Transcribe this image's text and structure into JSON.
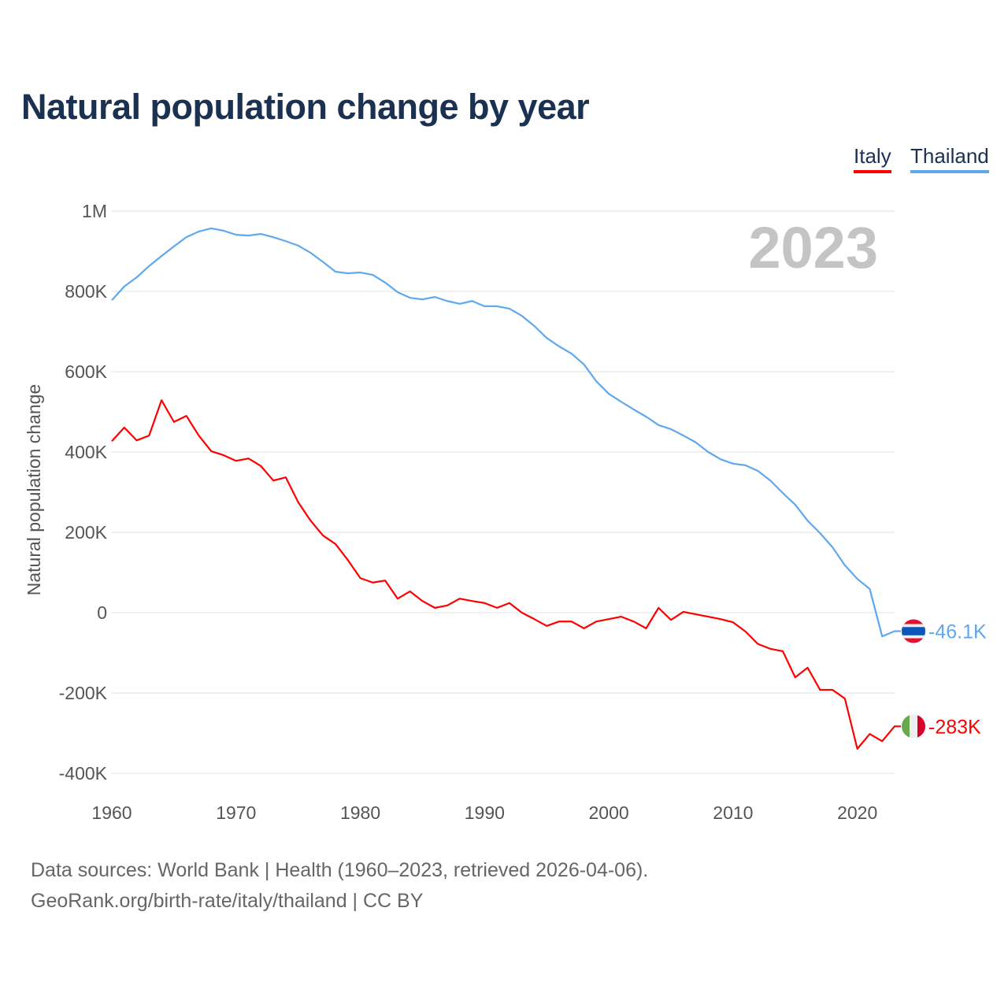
{
  "title": "Natural population change by year",
  "legend": [
    {
      "label": "Italy",
      "color": "#ff0000"
    },
    {
      "label": "Thailand",
      "color": "#5fa8ee"
    }
  ],
  "footer": {
    "line1": "Data sources: World Bank | Health (1960–2023, retrieved 2026-04-06).",
    "line2": "GeoRank.org/birth-rate/italy/thailand | CC BY"
  },
  "chart_data": {
    "type": "line",
    "title": "Natural population change by year",
    "xlabel": "",
    "ylabel": "Natural population change",
    "year_label": "2023",
    "xlim": [
      1960,
      2023
    ],
    "ylim": [
      -400000,
      1000000
    ],
    "x_ticks": [
      1960,
      1970,
      1980,
      1990,
      2000,
      2010,
      2020
    ],
    "y_ticks": [
      {
        "v": 1000000,
        "label": "1M"
      },
      {
        "v": 800000,
        "label": "800K"
      },
      {
        "v": 600000,
        "label": "600K"
      },
      {
        "v": 400000,
        "label": "400K"
      },
      {
        "v": 200000,
        "label": "200K"
      },
      {
        "v": 0,
        "label": "0"
      },
      {
        "v": -200000,
        "label": "-200K"
      },
      {
        "v": -400000,
        "label": "-400K"
      }
    ],
    "grid": true,
    "legend_position": "top-right",
    "x": [
      1960,
      1961,
      1962,
      1963,
      1964,
      1965,
      1966,
      1967,
      1968,
      1969,
      1970,
      1971,
      1972,
      1973,
      1974,
      1975,
      1976,
      1977,
      1978,
      1979,
      1980,
      1981,
      1982,
      1983,
      1984,
      1985,
      1986,
      1987,
      1988,
      1989,
      1990,
      1991,
      1992,
      1993,
      1994,
      1995,
      1996,
      1997,
      1998,
      1999,
      2000,
      2001,
      2002,
      2003,
      2004,
      2005,
      2006,
      2007,
      2008,
      2009,
      2010,
      2011,
      2012,
      2013,
      2014,
      2015,
      2016,
      2017,
      2018,
      2019,
      2020,
      2021,
      2022,
      2023
    ],
    "series": [
      {
        "name": "Thailand",
        "color": "#5fa8ee",
        "end_label": "-46.1K",
        "flag": "thailand-flag",
        "values": [
          778000,
          812000,
          835000,
          863000,
          888000,
          912000,
          935000,
          949000,
          957000,
          951000,
          941000,
          939000,
          943000,
          935000,
          925000,
          914000,
          896000,
          873000,
          849000,
          845000,
          847000,
          841000,
          822000,
          798000,
          784000,
          780000,
          786000,
          776000,
          769000,
          776000,
          763000,
          763000,
          757000,
          739000,
          714000,
          684000,
          663000,
          645000,
          618000,
          576000,
          545000,
          525000,
          506000,
          488000,
          467000,
          457000,
          441000,
          424000,
          400000,
          382000,
          371000,
          367000,
          353000,
          329000,
          298000,
          269000,
          229000,
          198000,
          163000,
          118000,
          84000,
          59000,
          -59000,
          -46100
        ]
      },
      {
        "name": "Italy",
        "color": "#ff0000",
        "end_label": "-283K",
        "flag": "italy-flag",
        "values": [
          427000,
          461000,
          429000,
          441000,
          529000,
          475000,
          490000,
          441000,
          402000,
          392000,
          378000,
          384000,
          365000,
          329000,
          337000,
          275000,
          229000,
          192000,
          171000,
          131000,
          86000,
          75000,
          80000,
          35000,
          53000,
          29000,
          12000,
          18000,
          35000,
          29000,
          24000,
          12000,
          24000,
          0,
          -16000,
          -33000,
          -22000,
          -22000,
          -39000,
          -22000,
          -16000,
          -10000,
          -22000,
          -39000,
          12000,
          -18000,
          2000,
          -4000,
          -10000,
          -16000,
          -24000,
          -47000,
          -78000,
          -90000,
          -96000,
          -161000,
          -137000,
          -192000,
          -192000,
          -214000,
          -339000,
          -302000,
          -320000,
          -283000
        ]
      }
    ]
  }
}
